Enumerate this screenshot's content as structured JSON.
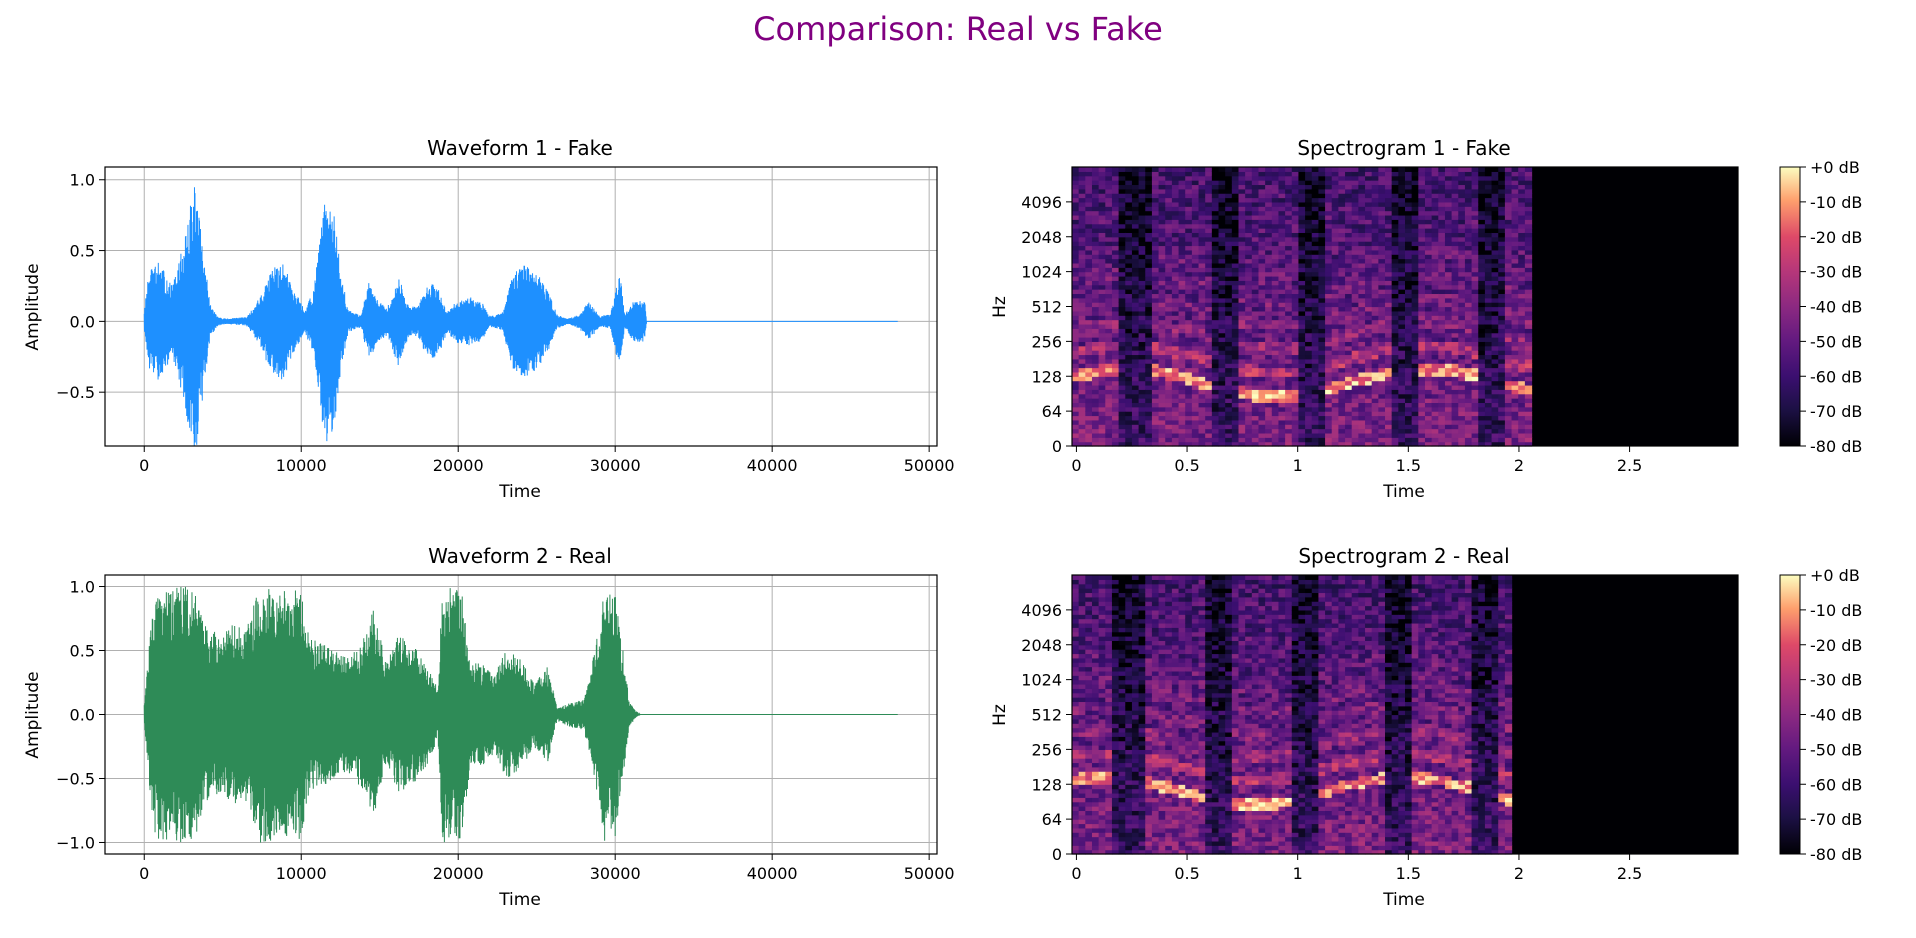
{
  "figure": {
    "title": "Comparison: Real vs Fake",
    "title_color": "#800080"
  },
  "chart_data": [
    {
      "id": "waveform1",
      "type": "line",
      "title": "Waveform 1 - Fake",
      "xlabel": "Time",
      "ylabel": "Amplitude",
      "xlim": [
        -2500,
        50500
      ],
      "ylim": [
        -0.88,
        1.09
      ],
      "xticks": [
        0,
        10000,
        20000,
        30000,
        40000,
        50000
      ],
      "xtick_labels": [
        "0",
        "10000",
        "20000",
        "30000",
        "40000",
        "50000"
      ],
      "yticks": [
        1.0,
        0.5,
        0.0,
        -0.5
      ],
      "ytick_labels": [
        "1.0",
        "0.5",
        "0.0",
        "−0.5"
      ],
      "grid": true,
      "color": "#1e90ff",
      "sample_count": 48000,
      "envelope": [
        [
          0,
          0.08
        ],
        [
          300,
          0.35
        ],
        [
          900,
          0.42
        ],
        [
          1800,
          0.25
        ],
        [
          2500,
          0.55
        ],
        [
          3200,
          1.0
        ],
        [
          3600,
          0.65
        ],
        [
          4200,
          0.12
        ],
        [
          4700,
          0.03
        ],
        [
          5200,
          0.02
        ],
        [
          6500,
          0.03
        ],
        [
          7200,
          0.14
        ],
        [
          8200,
          0.38
        ],
        [
          8800,
          0.42
        ],
        [
          9500,
          0.25
        ],
        [
          10200,
          0.08
        ],
        [
          10800,
          0.22
        ],
        [
          11500,
          0.88
        ],
        [
          12100,
          0.75
        ],
        [
          12600,
          0.3
        ],
        [
          13000,
          0.08
        ],
        [
          13800,
          0.04
        ],
        [
          14300,
          0.28
        ],
        [
          14900,
          0.14
        ],
        [
          15500,
          0.1
        ],
        [
          16200,
          0.32
        ],
        [
          16800,
          0.12
        ],
        [
          17400,
          0.1
        ],
        [
          18000,
          0.25
        ],
        [
          18600,
          0.28
        ],
        [
          19300,
          0.08
        ],
        [
          20000,
          0.16
        ],
        [
          20800,
          0.17
        ],
        [
          21500,
          0.14
        ],
        [
          22000,
          0.04
        ],
        [
          22800,
          0.06
        ],
        [
          23500,
          0.34
        ],
        [
          24200,
          0.4
        ],
        [
          25000,
          0.35
        ],
        [
          25700,
          0.22
        ],
        [
          26300,
          0.05
        ],
        [
          27000,
          0.02
        ],
        [
          27700,
          0.05
        ],
        [
          28300,
          0.14
        ],
        [
          29000,
          0.04
        ],
        [
          29700,
          0.05
        ],
        [
          30300,
          0.35
        ],
        [
          30600,
          0.05
        ],
        [
          31200,
          0.15
        ],
        [
          31900,
          0.14
        ],
        [
          32000,
          0.0
        ],
        [
          48000,
          0.0
        ]
      ]
    },
    {
      "id": "spectrogram1",
      "type": "heatmap",
      "title": "Spectrogram 1 - Fake",
      "xlabel": "Time",
      "ylabel": "Hz",
      "xlim": [
        -0.02,
        2.99
      ],
      "xticks": [
        0,
        0.5,
        1,
        1.5,
        2,
        2.5
      ],
      "xtick_labels": [
        "0",
        "0.5",
        "1",
        "1.5",
        "2",
        "2.5"
      ],
      "yscale": "log",
      "yticks": [
        0,
        64,
        128,
        256,
        512,
        1024,
        2048,
        4096
      ],
      "ytick_labels": [
        "0",
        "64",
        "128",
        "256",
        "512",
        "1024",
        "2048",
        "4096"
      ],
      "active_until_s": 2.04,
      "vmin_db": -80,
      "vmax_db": 0,
      "colormap": "magma",
      "colorbar_ticks": [
        "+0 dB",
        "-10 dB",
        "-20 dB",
        "-30 dB",
        "-40 dB",
        "-50 dB",
        "-60 dB",
        "-70 dB",
        "-80 dB"
      ]
    },
    {
      "id": "waveform2",
      "type": "line",
      "title": "Waveform 2 - Real",
      "xlabel": "Time",
      "ylabel": "Amplitude",
      "xlim": [
        -2500,
        50500
      ],
      "ylim": [
        -1.09,
        1.09
      ],
      "xticks": [
        0,
        10000,
        20000,
        30000,
        40000,
        50000
      ],
      "xtick_labels": [
        "0",
        "10000",
        "20000",
        "30000",
        "40000",
        "50000"
      ],
      "yticks": [
        1.0,
        0.5,
        0.0,
        -0.5,
        -1.0
      ],
      "ytick_labels": [
        "1.0",
        "0.5",
        "0.0",
        "−0.5",
        "−1.0"
      ],
      "grid": true,
      "color": "#2e8b57",
      "sample_count": 48000,
      "envelope": [
        [
          0,
          0.1
        ],
        [
          500,
          0.8
        ],
        [
          800,
          1.0
        ],
        [
          3300,
          1.0
        ],
        [
          3800,
          0.7
        ],
        [
          4600,
          0.66
        ],
        [
          5500,
          0.7
        ],
        [
          6500,
          0.68
        ],
        [
          7300,
          1.0
        ],
        [
          10000,
          1.0
        ],
        [
          10500,
          0.6
        ],
        [
          11500,
          0.55
        ],
        [
          12200,
          0.5
        ],
        [
          13000,
          0.45
        ],
        [
          14000,
          0.6
        ],
        [
          14600,
          0.85
        ],
        [
          15400,
          0.4
        ],
        [
          16200,
          0.62
        ],
        [
          17200,
          0.55
        ],
        [
          18000,
          0.4
        ],
        [
          18700,
          0.2
        ],
        [
          19000,
          1.0
        ],
        [
          20200,
          1.0
        ],
        [
          20800,
          0.38
        ],
        [
          21400,
          0.42
        ],
        [
          22300,
          0.3
        ],
        [
          23000,
          0.5
        ],
        [
          23900,
          0.45
        ],
        [
          24800,
          0.25
        ],
        [
          25700,
          0.38
        ],
        [
          26300,
          0.05
        ],
        [
          27200,
          0.1
        ],
        [
          28000,
          0.12
        ],
        [
          28700,
          0.5
        ],
        [
          29300,
          1.0
        ],
        [
          30000,
          0.95
        ],
        [
          30500,
          0.5
        ],
        [
          30900,
          0.1
        ],
        [
          31300,
          0.03
        ],
        [
          31600,
          0.0
        ],
        [
          48000,
          0.0
        ]
      ]
    },
    {
      "id": "spectrogram2",
      "type": "heatmap",
      "title": "Spectrogram 2 - Real",
      "xlabel": "Time",
      "ylabel": "Hz",
      "xlim": [
        -0.02,
        2.99
      ],
      "xticks": [
        0,
        0.5,
        1,
        1.5,
        2,
        2.5
      ],
      "xtick_labels": [
        "0",
        "0.5",
        "1",
        "1.5",
        "2",
        "2.5"
      ],
      "yscale": "log",
      "yticks": [
        0,
        64,
        128,
        256,
        512,
        1024,
        2048,
        4096
      ],
      "ytick_labels": [
        "0",
        "64",
        "128",
        "256",
        "512",
        "1024",
        "2048",
        "4096"
      ],
      "active_until_s": 1.96,
      "vmin_db": -80,
      "vmax_db": 0,
      "colormap": "magma",
      "colorbar_ticks": [
        "+0 dB",
        "-10 dB",
        "-20 dB",
        "-30 dB",
        "-40 dB",
        "-50 dB",
        "-60 dB",
        "-70 dB",
        "-80 dB"
      ]
    }
  ]
}
